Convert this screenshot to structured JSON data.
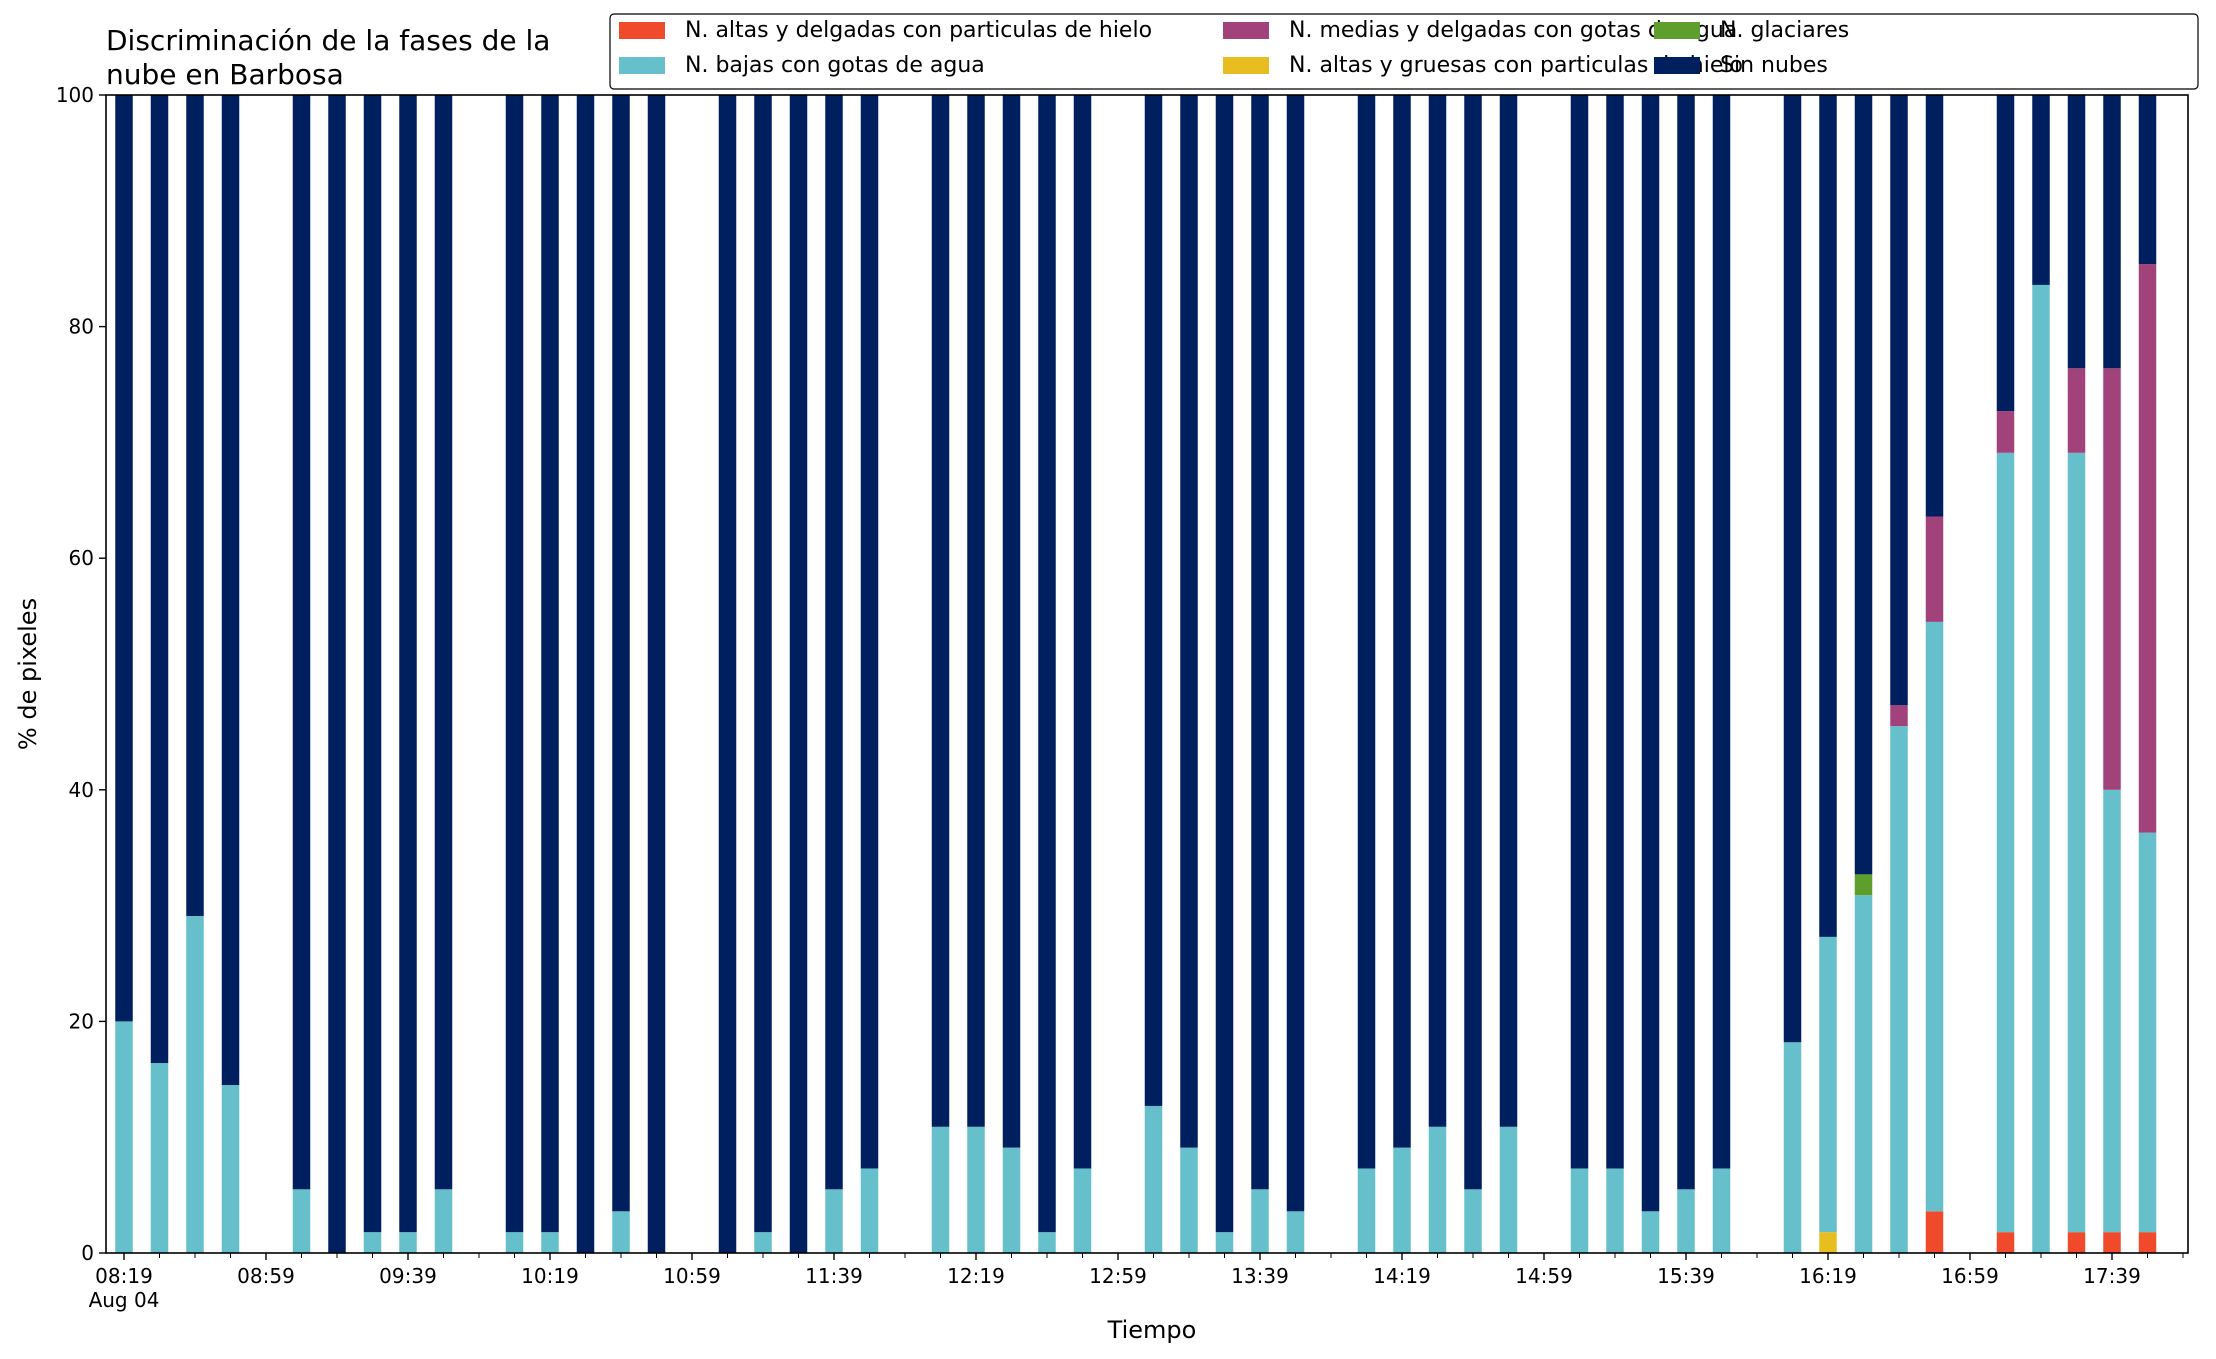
{
  "chart_data": {
    "type": "bar",
    "stacked": true,
    "title": "Discriminación de la fases de la\nnube en Barbosa",
    "xlabel": "Tiempo",
    "ylabel": "% de pixeles",
    "ylim": [
      0,
      100
    ],
    "yticks": [
      0,
      20,
      40,
      60,
      80,
      100
    ],
    "xticklabels": [
      {
        "slot": 0,
        "text": "08:19",
        "sub": "Aug 04"
      },
      {
        "slot": 4,
        "text": "08:59"
      },
      {
        "slot": 8,
        "text": "09:39"
      },
      {
        "slot": 12,
        "text": "10:19"
      },
      {
        "slot": 16,
        "text": "10:59"
      },
      {
        "slot": 20,
        "text": "11:39"
      },
      {
        "slot": 24,
        "text": "12:19"
      },
      {
        "slot": 28,
        "text": "12:59"
      },
      {
        "slot": 32,
        "text": "13:39"
      },
      {
        "slot": 36,
        "text": "14:19"
      },
      {
        "slot": 40,
        "text": "14:59"
      },
      {
        "slot": 44,
        "text": "15:39"
      },
      {
        "slot": 48,
        "text": "16:19"
      },
      {
        "slot": 52,
        "text": "16:59"
      },
      {
        "slot": 56,
        "text": "17:39"
      }
    ],
    "slot_count": 59,
    "grid": false,
    "legend_position": "top-right",
    "legend_columns": 3,
    "series": [
      {
        "name": "N. altas y delgadas con particulas de hielo",
        "color": "#ef4a2b"
      },
      {
        "name": "N. altas y gruesas con particulas de hielo",
        "color": "#e8bd1f"
      },
      {
        "name": "N. bajas con gotas de agua",
        "color": "#66c0cc"
      },
      {
        "name": "N. glaciares",
        "color": "#5d9e2c"
      },
      {
        "name": "N. medias y delgadas con gotas de agua",
        "color": "#a1437a"
      },
      {
        "name": "Sin nubes",
        "color": "#001f5e"
      }
    ],
    "legend_order": [
      0,
      2,
      4,
      1,
      3,
      5
    ],
    "bars": [
      {
        "slot": 0,
        "values": [
          0,
          0,
          20,
          0,
          0,
          80
        ]
      },
      {
        "slot": 1,
        "values": [
          0,
          0,
          16.4,
          0,
          0,
          83.6
        ]
      },
      {
        "slot": 2,
        "values": [
          0,
          0,
          29.1,
          0,
          0,
          70.9
        ]
      },
      {
        "slot": 3,
        "values": [
          0,
          0,
          14.5,
          0,
          0,
          85.5
        ]
      },
      {
        "slot": 5,
        "values": [
          0,
          0,
          5.5,
          0,
          0,
          94.5
        ]
      },
      {
        "slot": 6,
        "values": [
          0,
          0,
          0,
          0,
          0,
          100
        ]
      },
      {
        "slot": 7,
        "values": [
          0,
          0,
          1.8,
          0,
          0,
          98.2
        ]
      },
      {
        "slot": 8,
        "values": [
          0,
          0,
          1.8,
          0,
          0,
          98.2
        ]
      },
      {
        "slot": 9,
        "values": [
          0,
          0,
          5.5,
          0,
          0,
          94.5
        ]
      },
      {
        "slot": 11,
        "values": [
          0,
          0,
          1.8,
          0,
          0,
          98.2
        ]
      },
      {
        "slot": 12,
        "values": [
          0,
          0,
          1.8,
          0,
          0,
          98.2
        ]
      },
      {
        "slot": 13,
        "values": [
          0,
          0,
          0,
          0,
          0,
          100
        ]
      },
      {
        "slot": 14,
        "values": [
          0,
          0,
          3.6,
          0,
          0,
          96.4
        ]
      },
      {
        "slot": 15,
        "values": [
          0,
          0,
          0,
          0,
          0,
          100
        ]
      },
      {
        "slot": 17,
        "values": [
          0,
          0,
          0,
          0,
          0,
          100
        ]
      },
      {
        "slot": 18,
        "values": [
          0,
          0,
          1.8,
          0,
          0,
          98.2
        ]
      },
      {
        "slot": 19,
        "values": [
          0,
          0,
          0,
          0,
          0,
          100
        ]
      },
      {
        "slot": 20,
        "values": [
          0,
          0,
          5.5,
          0,
          0,
          94.5
        ]
      },
      {
        "slot": 21,
        "values": [
          0,
          0,
          7.3,
          0,
          0,
          92.7
        ]
      },
      {
        "slot": 23,
        "values": [
          0,
          0,
          10.9,
          0,
          0,
          89.1
        ]
      },
      {
        "slot": 24,
        "values": [
          0,
          0,
          10.9,
          0,
          0,
          89.1
        ]
      },
      {
        "slot": 25,
        "values": [
          0,
          0,
          9.1,
          0,
          0,
          90.9
        ]
      },
      {
        "slot": 26,
        "values": [
          0,
          0,
          1.8,
          0,
          0,
          98.2
        ]
      },
      {
        "slot": 27,
        "values": [
          0,
          0,
          7.3,
          0,
          0,
          92.7
        ]
      },
      {
        "slot": 29,
        "values": [
          0,
          0,
          12.7,
          0,
          0,
          87.3
        ]
      },
      {
        "slot": 30,
        "values": [
          0,
          0,
          9.1,
          0,
          0,
          90.9
        ]
      },
      {
        "slot": 31,
        "values": [
          0,
          0,
          1.8,
          0,
          0,
          98.2
        ]
      },
      {
        "slot": 32,
        "values": [
          0,
          0,
          5.5,
          0,
          0,
          94.5
        ]
      },
      {
        "slot": 33,
        "values": [
          0,
          0,
          3.6,
          0,
          0,
          96.4
        ]
      },
      {
        "slot": 35,
        "values": [
          0,
          0,
          7.3,
          0,
          0,
          92.7
        ]
      },
      {
        "slot": 36,
        "values": [
          0,
          0,
          9.1,
          0,
          0,
          90.9
        ]
      },
      {
        "slot": 37,
        "values": [
          0,
          0,
          10.9,
          0,
          0,
          89.1
        ]
      },
      {
        "slot": 38,
        "values": [
          0,
          0,
          5.5,
          0,
          0,
          94.5
        ]
      },
      {
        "slot": 39,
        "values": [
          0,
          0,
          10.9,
          0,
          0,
          89.1
        ]
      },
      {
        "slot": 41,
        "values": [
          0,
          0,
          7.3,
          0,
          0,
          92.7
        ]
      },
      {
        "slot": 42,
        "values": [
          0,
          0,
          7.3,
          0,
          0,
          92.7
        ]
      },
      {
        "slot": 43,
        "values": [
          0,
          0,
          3.6,
          0,
          0,
          96.4
        ]
      },
      {
        "slot": 44,
        "values": [
          0,
          0,
          5.5,
          0,
          0,
          94.5
        ]
      },
      {
        "slot": 45,
        "values": [
          0,
          0,
          7.3,
          0,
          0,
          92.7
        ]
      },
      {
        "slot": 47,
        "values": [
          0,
          0,
          18.2,
          0,
          0,
          81.8
        ]
      },
      {
        "slot": 48,
        "values": [
          0,
          1.8,
          25.5,
          0,
          0,
          72.7
        ]
      },
      {
        "slot": 49,
        "values": [
          0,
          0,
          30.9,
          1.8,
          0,
          67.3
        ]
      },
      {
        "slot": 50,
        "values": [
          0,
          0,
          45.5,
          0,
          1.8,
          52.7
        ]
      },
      {
        "slot": 51,
        "values": [
          3.6,
          0,
          50.9,
          0,
          9.1,
          36.4
        ]
      },
      {
        "slot": 53,
        "values": [
          1.8,
          0,
          67.3,
          0,
          3.6,
          27.3
        ]
      },
      {
        "slot": 54,
        "values": [
          0,
          0,
          83.6,
          0,
          0,
          16.4
        ]
      },
      {
        "slot": 55,
        "values": [
          1.8,
          0,
          67.3,
          0,
          7.3,
          23.6
        ]
      },
      {
        "slot": 56,
        "values": [
          1.8,
          0,
          38.2,
          0,
          36.4,
          23.6
        ]
      },
      {
        "slot": 57,
        "values": [
          1.8,
          0,
          34.5,
          0,
          49.1,
          14.6
        ]
      }
    ]
  }
}
